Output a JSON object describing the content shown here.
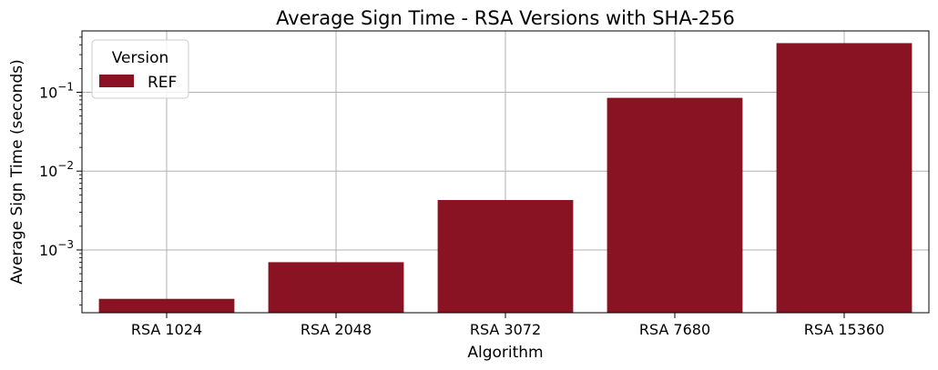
{
  "chart_data": {
    "type": "bar",
    "title": "Average Sign Time - RSA Versions with SHA-256",
    "xlabel": "Algorithm",
    "ylabel": "Average Sign Time (seconds)",
    "yscale": "log",
    "ylim": [
      0.00016,
      0.6
    ],
    "grid": true,
    "categories": [
      "RSA 1024",
      "RSA 2048",
      "RSA 3072",
      "RSA 7680",
      "RSA 15360"
    ],
    "series": [
      {
        "name": "REF",
        "color": "#8a1323",
        "values": [
          0.00024,
          0.0007,
          0.0043,
          0.085,
          0.42
        ]
      }
    ],
    "y_ticks": [
      {
        "value": 0.001,
        "base": "10",
        "exp": "−3"
      },
      {
        "value": 0.01,
        "base": "10",
        "exp": "−2"
      },
      {
        "value": 0.1,
        "base": "10",
        "exp": "−1"
      }
    ],
    "legend": {
      "title": "Version",
      "position": "top-left"
    }
  }
}
